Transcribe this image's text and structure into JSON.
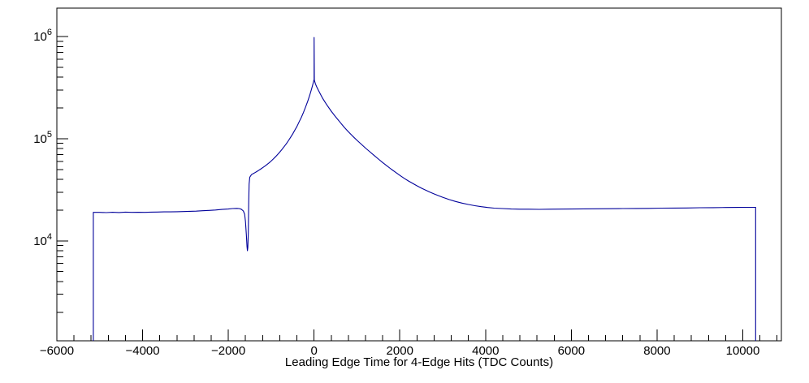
{
  "chart_data": {
    "type": "line",
    "title": "",
    "xlabel": "Leading Edge Time for 4-Edge Hits (TDC Counts)",
    "ylabel": "",
    "x_range": [
      -6000,
      10900
    ],
    "y_range": [
      1050,
      1900000
    ],
    "y_scale": "log",
    "grid": false,
    "legend": false,
    "x_major_ticks": [
      -6000,
      -4000,
      -2000,
      0,
      2000,
      4000,
      6000,
      8000,
      10000
    ],
    "x_tick_labels": [
      "−6000",
      "−4000",
      "−2000",
      "0",
      "2000",
      "4000",
      "6000",
      "8000",
      "10000"
    ],
    "x_minor_step": 400,
    "y_major_ticks": [
      10000,
      100000,
      1000000
    ],
    "y_tick_exponents": [
      4,
      5,
      6
    ],
    "line_color": "#00009a",
    "frame_color": "#000000",
    "background_color": "#ffffff",
    "series": [
      {
        "name": "leading-edge-time-4edge-hits",
        "points": [
          [
            -5150,
            1050
          ],
          [
            -5150,
            19000
          ],
          [
            -5000,
            19000
          ],
          [
            -4850,
            18900
          ],
          [
            -4700,
            19050
          ],
          [
            -4550,
            18950
          ],
          [
            -4400,
            19100
          ],
          [
            -4250,
            19000
          ],
          [
            -4100,
            19050
          ],
          [
            -3950,
            19000
          ],
          [
            -3800,
            19100
          ],
          [
            -3650,
            19150
          ],
          [
            -3500,
            19200
          ],
          [
            -3350,
            19200
          ],
          [
            -3200,
            19300
          ],
          [
            -3050,
            19350
          ],
          [
            -2900,
            19450
          ],
          [
            -2750,
            19550
          ],
          [
            -2600,
            19700
          ],
          [
            -2450,
            19850
          ],
          [
            -2300,
            20050
          ],
          [
            -2150,
            20300
          ],
          [
            -2000,
            20500
          ],
          [
            -1900,
            20700
          ],
          [
            -1800,
            20800
          ],
          [
            -1750,
            20700
          ],
          [
            -1700,
            20400
          ],
          [
            -1650,
            19600
          ],
          [
            -1620,
            18200
          ],
          [
            -1600,
            15500
          ],
          [
            -1580,
            11500
          ],
          [
            -1565,
            8800
          ],
          [
            -1555,
            8000
          ],
          [
            -1545,
            8600
          ],
          [
            -1535,
            12000
          ],
          [
            -1525,
            24000
          ],
          [
            -1515,
            36000
          ],
          [
            -1500,
            42000
          ],
          [
            -1460,
            44500
          ],
          [
            -1420,
            45500
          ],
          [
            -1380,
            46500
          ],
          [
            -1340,
            47600
          ],
          [
            -1300,
            48800
          ],
          [
            -1250,
            50300
          ],
          [
            -1200,
            52000
          ],
          [
            -1150,
            53800
          ],
          [
            -1100,
            55800
          ],
          [
            -1050,
            58000
          ],
          [
            -1000,
            60500
          ],
          [
            -950,
            63300
          ],
          [
            -900,
            66500
          ],
          [
            -850,
            70000
          ],
          [
            -800,
            74000
          ],
          [
            -750,
            78500
          ],
          [
            -700,
            83500
          ],
          [
            -650,
            89000
          ],
          [
            -600,
            95500
          ],
          [
            -550,
            103000
          ],
          [
            -500,
            111000
          ],
          [
            -450,
            121000
          ],
          [
            -400,
            132000
          ],
          [
            -350,
            146000
          ],
          [
            -300,
            161000
          ],
          [
            -250,
            180000
          ],
          [
            -200,
            203000
          ],
          [
            -150,
            232000
          ],
          [
            -100,
            268000
          ],
          [
            -60,
            305000
          ],
          [
            -30,
            340000
          ],
          [
            -10,
            368000
          ],
          [
            0,
            380000
          ],
          [
            0,
            980000
          ],
          [
            5,
            375000
          ],
          [
            30,
            345000
          ],
          [
            60,
            322000
          ],
          [
            100,
            298000
          ],
          [
            150,
            272000
          ],
          [
            200,
            249000
          ],
          [
            250,
            230000
          ],
          [
            300,
            214000
          ],
          [
            400,
            186000
          ],
          [
            500,
            164000
          ],
          [
            600,
            146000
          ],
          [
            700,
            130000
          ],
          [
            800,
            117000
          ],
          [
            900,
            106000
          ],
          [
            1000,
            96500
          ],
          [
            1100,
            88500
          ],
          [
            1200,
            81000
          ],
          [
            1300,
            74500
          ],
          [
            1400,
            68500
          ],
          [
            1500,
            63200
          ],
          [
            1600,
            58500
          ],
          [
            1700,
            54200
          ],
          [
            1800,
            50300
          ],
          [
            1900,
            46900
          ],
          [
            2000,
            43800
          ],
          [
            2100,
            41000
          ],
          [
            2200,
            38600
          ],
          [
            2300,
            36500
          ],
          [
            2400,
            34600
          ],
          [
            2500,
            32900
          ],
          [
            2600,
            31400
          ],
          [
            2700,
            30000
          ],
          [
            2800,
            28800
          ],
          [
            2900,
            27700
          ],
          [
            3000,
            26700
          ],
          [
            3150,
            25400
          ],
          [
            3300,
            24300
          ],
          [
            3450,
            23400
          ],
          [
            3600,
            22700
          ],
          [
            3750,
            22100
          ],
          [
            3900,
            21600
          ],
          [
            4050,
            21200
          ],
          [
            4200,
            20900
          ],
          [
            4400,
            20700
          ],
          [
            4600,
            20500
          ],
          [
            4800,
            20400
          ],
          [
            5000,
            20400
          ],
          [
            5250,
            20350
          ],
          [
            5500,
            20400
          ],
          [
            5750,
            20450
          ],
          [
            6000,
            20500
          ],
          [
            6300,
            20550
          ],
          [
            6600,
            20600
          ],
          [
            6900,
            20650
          ],
          [
            7200,
            20700
          ],
          [
            7500,
            20750
          ],
          [
            7800,
            20800
          ],
          [
            8100,
            20900
          ],
          [
            8400,
            20950
          ],
          [
            8700,
            21000
          ],
          [
            9000,
            21100
          ],
          [
            9300,
            21150
          ],
          [
            9600,
            21200
          ],
          [
            9900,
            21250
          ],
          [
            10150,
            21300
          ],
          [
            10300,
            21300
          ],
          [
            10300,
            1050
          ]
        ]
      }
    ]
  }
}
